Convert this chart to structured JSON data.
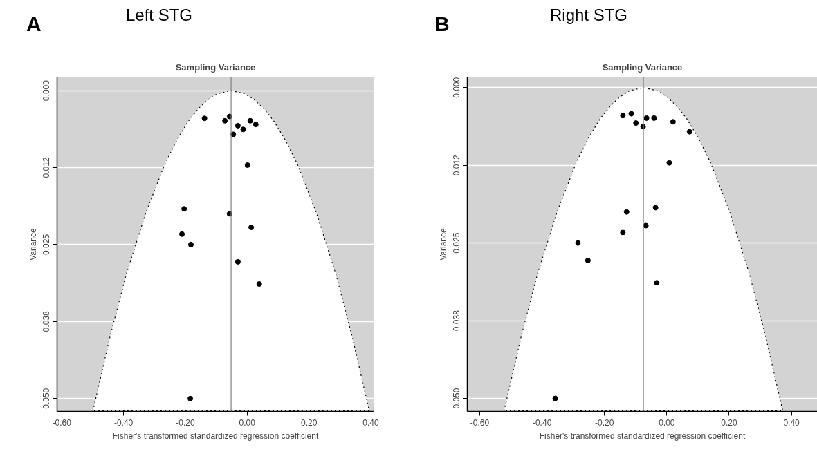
{
  "chart_data": [
    {
      "type": "scatter",
      "title": "Left STG",
      "subtitle": "Sampling Variance",
      "annotations": [
        "A"
      ],
      "xlabel": "Fisher's transformed standardized regression coefficient",
      "ylabel": "Variance",
      "grid": "y",
      "xlim": [
        -0.615,
        0.41
      ],
      "ylim": [
        0.0521,
        -0.0022
      ],
      "xticks": [
        {
          "value": -0.6,
          "label": "-0.60"
        },
        {
          "value": -0.4,
          "label": "-0.40"
        },
        {
          "value": -0.2,
          "label": "-0.20"
        },
        {
          "value": 0,
          "label": "0.00"
        },
        {
          "value": 0.2,
          "label": "0.20"
        },
        {
          "value": 0.4,
          "label": "0.40"
        }
      ],
      "yticks": [
        {
          "value": 0,
          "label": "0.000"
        },
        {
          "value": 0.0125,
          "label": "0.012"
        },
        {
          "value": 0.025,
          "label": "0.025"
        },
        {
          "value": 0.0375,
          "label": "0.038"
        },
        {
          "value": 0.05,
          "label": "0.050"
        }
      ],
      "ref_lines": [
        {
          "axis": "x",
          "value": -0.052,
          "color": "#808080"
        }
      ],
      "series": [
        {
          "type": "area",
          "color": "#ffffff",
          "line_style": "dotted",
          "x": [
            -0.499,
            -0.444,
            -0.392,
            -0.329,
            -0.267,
            -0.227,
            -0.191,
            -0.159,
            -0.128,
            -0.096,
            -0.052,
            -0.008,
            0.024,
            0.055,
            0.087,
            0.123,
            0.163,
            0.225,
            0.288,
            0.34,
            0.395
          ],
          "values": [
            0.052,
            0.04,
            0.03,
            0.02,
            0.012,
            0.008,
            0.005,
            0.003,
            0.0015,
            0.0005,
            0,
            0.0005,
            0.0015,
            0.003,
            0.005,
            0.008,
            0.012,
            0.02,
            0.03,
            0.04,
            0.052
          ]
        },
        {
          "marker": "circle",
          "color": "#000000",
          "x": [
            -0.138,
            -0.072,
            -0.057,
            -0.045,
            -0.03,
            -0.013,
            0.01,
            0.028,
            0.001,
            -0.204,
            -0.057,
            0.013,
            -0.211,
            -0.182,
            -0.03,
            0.039,
            -0.184
          ],
          "values": [
            0.0045,
            0.0049,
            0.0042,
            0.0071,
            0.0057,
            0.0063,
            0.0049,
            0.0055,
            0.0121,
            0.0192,
            0.02,
            0.0222,
            0.0233,
            0.025,
            0.0278,
            0.0314,
            0.05
          ]
        }
      ]
    },
    {
      "type": "scatter",
      "title": "Right STG",
      "subtitle": "Sampling Variance",
      "annotations": [
        "B"
      ],
      "xlabel": "Fisher's transformed standardized regression coefficient",
      "ylabel": "Variance",
      "grid": "y",
      "xlim": [
        -0.64,
        0.483
      ],
      "ylim": [
        0.0521,
        -0.0017
      ],
      "xticks": [
        {
          "value": -0.6,
          "label": "-0.60"
        },
        {
          "value": -0.4,
          "label": "-0.40"
        },
        {
          "value": -0.2,
          "label": "-0.20"
        },
        {
          "value": 0,
          "label": "0.00"
        },
        {
          "value": 0.2,
          "label": "0.20"
        },
        {
          "value": 0.4,
          "label": "0.40"
        }
      ],
      "yticks": [
        {
          "value": 0,
          "label": "0.000"
        },
        {
          "value": 0.0125,
          "label": "0.012"
        },
        {
          "value": 0.025,
          "label": "0.025"
        },
        {
          "value": 0.0375,
          "label": "0.038"
        },
        {
          "value": 0.05,
          "label": "0.050"
        }
      ],
      "ref_lines": [
        {
          "axis": "x",
          "value": -0.075,
          "color": "#808080"
        }
      ],
      "series": [
        {
          "type": "area",
          "color": "#ffffff",
          "line_style": "dotted",
          "x": [
            -0.522,
            -0.467,
            -0.415,
            -0.352,
            -0.29,
            -0.25,
            -0.214,
            -0.182,
            -0.151,
            -0.119,
            -0.075,
            -0.031,
            0.001,
            0.032,
            0.064,
            0.1,
            0.14,
            0.202,
            0.265,
            0.317,
            0.372
          ],
          "values": [
            0.052,
            0.04,
            0.03,
            0.02,
            0.012,
            0.008,
            0.005,
            0.003,
            0.0015,
            0.0005,
            0,
            0.0005,
            0.0015,
            0.003,
            0.005,
            0.008,
            0.012,
            0.02,
            0.03,
            0.04,
            0.052
          ]
        },
        {
          "marker": "circle",
          "color": "#000000",
          "x": [
            -0.141,
            -0.114,
            -0.099,
            -0.076,
            -0.065,
            -0.041,
            0.02,
            0.073,
            0.008,
            -0.036,
            -0.129,
            -0.067,
            -0.141,
            -0.285,
            -0.253,
            -0.032,
            -0.358
          ],
          "values": [
            0.0045,
            0.0042,
            0.0057,
            0.0063,
            0.0049,
            0.0049,
            0.0055,
            0.0071,
            0.0121,
            0.0193,
            0.02,
            0.0222,
            0.0233,
            0.025,
            0.0278,
            0.0314,
            0.05
          ]
        }
      ]
    }
  ]
}
